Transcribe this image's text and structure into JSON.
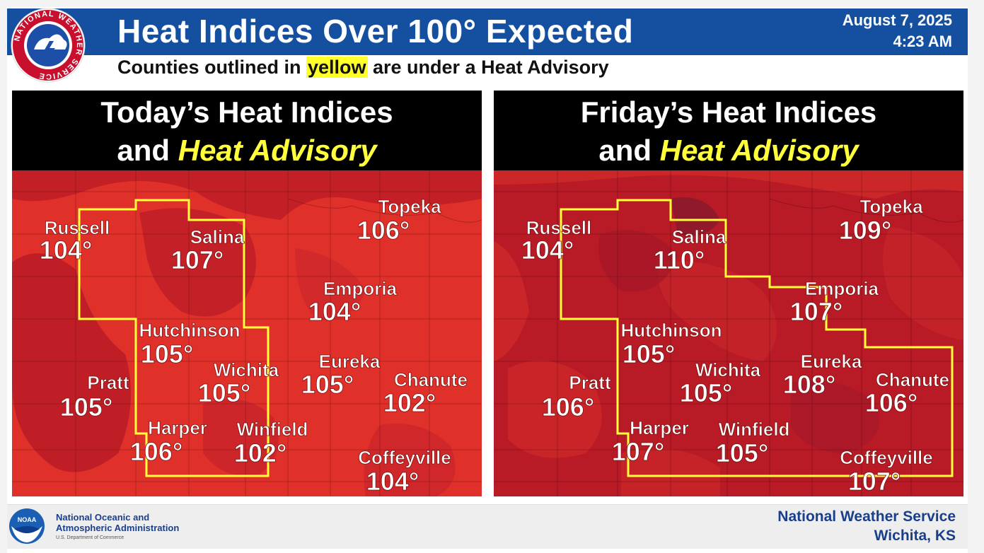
{
  "header": {
    "title": "Heat Indices Over 100° Expected",
    "date": "August 7, 2025",
    "time": "4:23 AM",
    "subtitle_before": "Counties outlined in ",
    "subtitle_highlight": "yellow",
    "subtitle_after": " are under a Heat Advisory",
    "logo_text": "NATIONAL WEATHER SERVICE"
  },
  "panels": [
    {
      "title_line1": "Today’s Heat Indices",
      "title_and": "and ",
      "title_highlight": "Heat Advisory",
      "cities": [
        {
          "name": "Russell",
          "value": "104°"
        },
        {
          "name": "Salina",
          "value": "107°"
        },
        {
          "name": "Topeka",
          "value": "106°"
        },
        {
          "name": "Emporia",
          "value": "104°"
        },
        {
          "name": "Hutchinson",
          "value": "105°"
        },
        {
          "name": "Wichita",
          "value": "105°"
        },
        {
          "name": "Eureka",
          "value": "105°"
        },
        {
          "name": "Chanute",
          "value": "102°"
        },
        {
          "name": "Pratt",
          "value": "105°"
        },
        {
          "name": "Harper",
          "value": "106°"
        },
        {
          "name": "Winfield",
          "value": "102°"
        },
        {
          "name": "Coffeyville",
          "value": "104°"
        }
      ]
    },
    {
      "title_line1": "Friday’s Heat Indices",
      "title_and": "and ",
      "title_highlight": "Heat Advisory",
      "cities": [
        {
          "name": "Russell",
          "value": "104°"
        },
        {
          "name": "Salina",
          "value": "110°"
        },
        {
          "name": "Topeka",
          "value": "109°"
        },
        {
          "name": "Emporia",
          "value": "107°"
        },
        {
          "name": "Hutchinson",
          "value": "105°"
        },
        {
          "name": "Wichita",
          "value": "105°"
        },
        {
          "name": "Eureka",
          "value": "108°"
        },
        {
          "name": "Chanute",
          "value": "106°"
        },
        {
          "name": "Pratt",
          "value": "106°"
        },
        {
          "name": "Harper",
          "value": "107°"
        },
        {
          "name": "Winfield",
          "value": "105°"
        },
        {
          "name": "Coffeyville",
          "value": "107°"
        }
      ]
    }
  ],
  "footer": {
    "noaa_logo_text": "NOAA",
    "noaa_line1": "National Oceanic and",
    "noaa_line2": "Atmospheric Administration",
    "noaa_dept": "U.S. Department of Commerce",
    "nws_name": "National Weather Service",
    "nws_location": "Wichita, KS"
  },
  "colors": {
    "banner": "#1550a0",
    "advisory_outline": "#ffff3c",
    "heat_light": "#e0302a",
    "heat_dark": "#b81a26",
    "heat_darkest": "#8c1a2c"
  }
}
